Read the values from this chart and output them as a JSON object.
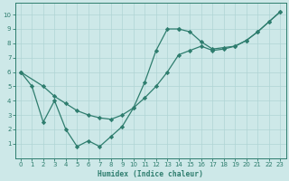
{
  "zigzag_x": [
    0,
    1,
    2,
    3,
    4,
    5,
    6,
    7,
    8,
    9,
    10,
    11,
    12,
    13,
    14
  ],
  "zigzag_y": [
    6.0,
    5.0,
    2.5,
    4.0,
    2.0,
    0.8,
    1.2,
    0.8,
    1.5,
    2.2,
    3.5,
    5.3,
    7.5,
    9.0,
    9.0
  ],
  "smooth_x": [
    0,
    2,
    3,
    4,
    5,
    6,
    7,
    8,
    9,
    10,
    11,
    12,
    13,
    14,
    15,
    16,
    17,
    18,
    19,
    20,
    21,
    22,
    23
  ],
  "smooth_y": [
    6.0,
    5.0,
    4.3,
    3.8,
    3.3,
    3.0,
    2.8,
    2.7,
    3.0,
    3.5,
    4.2,
    5.0,
    6.0,
    7.2,
    7.5,
    7.8,
    7.5,
    7.6,
    7.8,
    8.2,
    8.8,
    9.5,
    10.2
  ],
  "upper_x": [
    14,
    15,
    16,
    17,
    18,
    19,
    20,
    21,
    22,
    23
  ],
  "upper_y": [
    9.0,
    8.8,
    8.1,
    7.6,
    7.7,
    7.8,
    8.2,
    8.8,
    9.5,
    10.2
  ],
  "color": "#2e7d6e",
  "bg_color": "#cde8e8",
  "grid_color": "#afd4d4",
  "xlabel": "Humidex (Indice chaleur)",
  "xlim": [
    -0.5,
    23.5
  ],
  "ylim": [
    0,
    10.8
  ],
  "yticks": [
    1,
    2,
    3,
    4,
    5,
    6,
    7,
    8,
    9,
    10
  ],
  "xticks": [
    0,
    1,
    2,
    3,
    4,
    5,
    6,
    7,
    8,
    9,
    10,
    11,
    12,
    13,
    14,
    15,
    16,
    17,
    18,
    19,
    20,
    21,
    22,
    23
  ]
}
